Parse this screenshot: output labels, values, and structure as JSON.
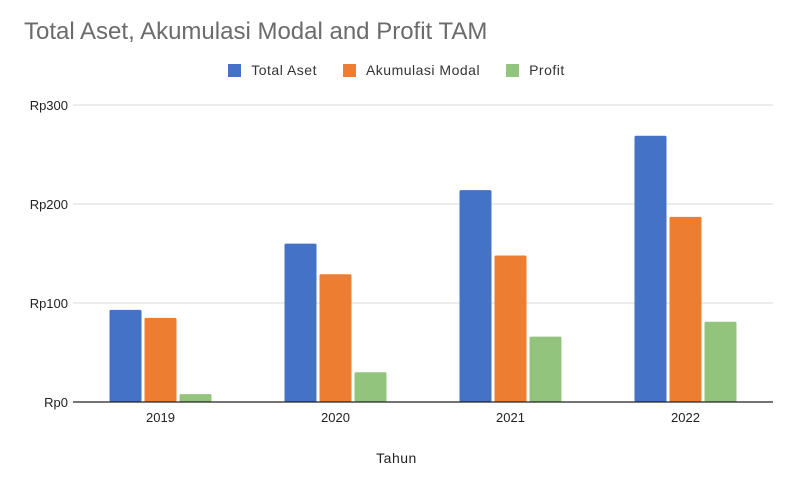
{
  "chart_data": {
    "type": "bar",
    "title": "Total Aset, Akumulasi Modal and Profit TAM",
    "xlabel": "Tahun",
    "ylabel": "",
    "categories": [
      "2019",
      "2020",
      "2021",
      "2022"
    ],
    "series": [
      {
        "name": "Total Aset",
        "color": "#4472C4",
        "values": [
          93,
          160,
          214,
          269
        ]
      },
      {
        "name": "Akumulasi Modal",
        "color": "#ED7D31",
        "values": [
          85,
          129,
          148,
          187
        ]
      },
      {
        "name": "Profit",
        "color": "#93C47D",
        "values": [
          8,
          30,
          66,
          81
        ]
      }
    ],
    "ylim": [
      0,
      300
    ],
    "yticks": [
      0,
      100,
      200,
      300
    ],
    "ytick_labels": [
      "Rp0",
      "Rp100",
      "Rp200",
      "Rp300"
    ],
    "grid": true,
    "legend_position": "top-center"
  }
}
